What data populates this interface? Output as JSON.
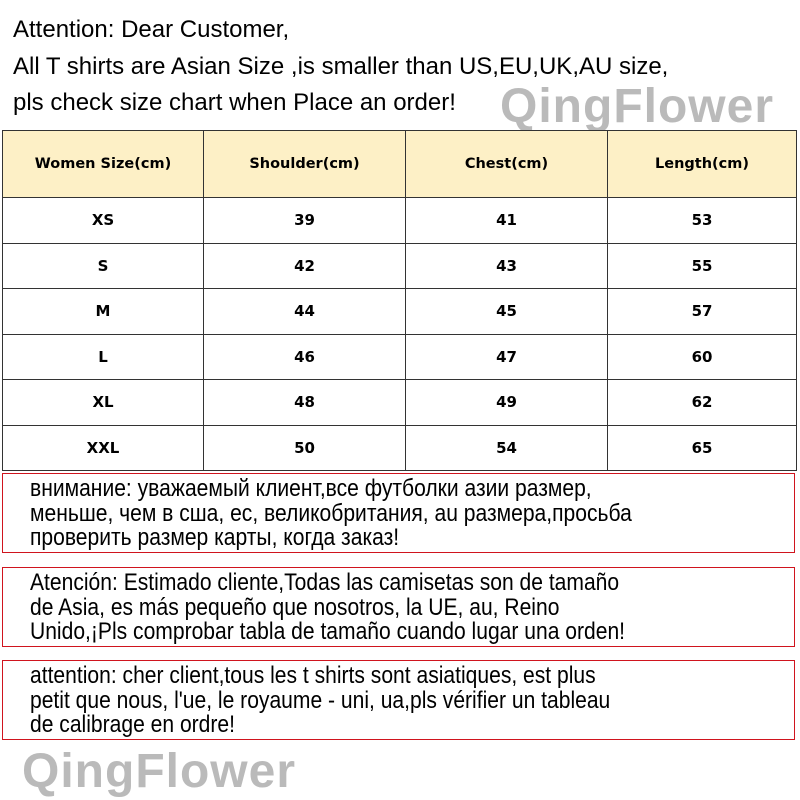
{
  "intro": {
    "lines": [
      "Attention: Dear Customer,",
      "All T shirts are  Asian Size ,is smaller than US,EU,UK,AU size,",
      "pls check size chart when Place an order!"
    ]
  },
  "table": {
    "headers": [
      "Women Size(cm)",
      "Shoulder(cm)",
      "Chest(cm)",
      "Length(cm)"
    ],
    "rows": [
      [
        "XS",
        "39",
        "41",
        "53"
      ],
      [
        "S",
        "42",
        "43",
        "55"
      ],
      [
        "M",
        "44",
        "45",
        "57"
      ],
      [
        "L",
        "46",
        "47",
        "60"
      ],
      [
        "XL",
        "48",
        "49",
        "62"
      ],
      [
        "XXL",
        "50",
        "54",
        "65"
      ]
    ]
  },
  "notices": [
    {
      "lang": "ru",
      "lines": [
        "внимание: уважаемый клиент,все футболки азии размер,",
        "меньше, чем в сша, ес, великобритания, au размера,просьба",
        "проверить размер карты, когда заказ!"
      ]
    },
    {
      "lang": "es",
      "lines": [
        "Atención: Estimado cliente,Todas las camisetas son de tamaño",
        "de Asia, es más pequeño que nosotros, la UE, au, Reino",
        "Unido,¡Pls comprobar tabla de tamaño cuando lugar una orden!"
      ]
    },
    {
      "lang": "fr",
      "lines": [
        "attention: cher client,tous les t shirts sont asiatiques, est plus",
        "petit que nous, l'ue, le royaume - uni, ua,pls vérifier un tableau",
        "de calibrage en ordre!"
      ]
    }
  ],
  "watermark": "QingFlower",
  "colors": {
    "header_bg": "#fdf0c6",
    "notice_border": "#d0141e"
  }
}
